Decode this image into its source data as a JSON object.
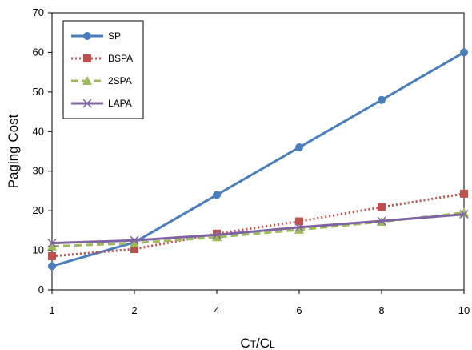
{
  "chart_data": {
    "type": "line",
    "title": "",
    "xlabel": "CT/CL",
    "xlabel_main": [
      "C",
      "C"
    ],
    "xlabel_sub": [
      "T",
      "L"
    ],
    "xlabel_sep": "/",
    "ylabel": "Paging Cost",
    "categories": [
      "1",
      "2",
      "4",
      "6",
      "8",
      "10"
    ],
    "ylim": [
      0,
      70
    ],
    "yticks": [
      "0",
      "10",
      "20",
      "30",
      "40",
      "50",
      "60",
      "70"
    ],
    "grid": false,
    "legend_position": "top-left",
    "series": [
      {
        "name": "SP",
        "values": [
          6,
          12,
          24,
          36,
          48,
          60
        ],
        "color": "#4a7ebb",
        "marker": "circle",
        "dash": "solid"
      },
      {
        "name": "BSPA",
        "values": [
          8.5,
          10.3,
          14.2,
          17.3,
          20.9,
          24.3
        ],
        "color": "#c0504d",
        "marker": "square",
        "dash": "dotted"
      },
      {
        "name": "2SPA",
        "values": [
          11,
          11.8,
          13.3,
          15.2,
          17.2,
          19.5
        ],
        "color": "#9bbb59",
        "marker": "triangle",
        "dash": "dashed"
      },
      {
        "name": "LAPA",
        "values": [
          11.8,
          12.5,
          13.9,
          15.8,
          17.4,
          19.1
        ],
        "color": "#8064a2",
        "marker": "x",
        "dash": "solid"
      }
    ]
  }
}
